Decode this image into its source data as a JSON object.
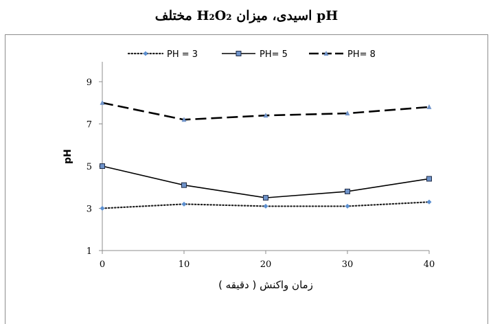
{
  "chart_data": {
    "type": "line",
    "title_prefix": "pH اسیدی، میزان ",
    "title_formula": "H₂O₂",
    "title_suffix": " مختلف",
    "xlabel": "زمان واکنش ( دقیقه )",
    "ylabel": "pH",
    "x": [
      0,
      10,
      20,
      30,
      40
    ],
    "x_ticks": [
      "0",
      "10",
      "20",
      "30",
      "40"
    ],
    "y_ticks": [
      "1",
      "3",
      "5",
      "7",
      "9"
    ],
    "xlim": [
      0,
      40
    ],
    "ylim": [
      1,
      9.3
    ],
    "grid": false,
    "legend_position": "top",
    "series": [
      {
        "name": "PH = 3",
        "values": [
          3.0,
          3.2,
          3.1,
          3.1,
          3.3
        ],
        "style": "dotted",
        "marker": "diamond",
        "color": "#1f1f1f",
        "marker_color": "#5b8fd0"
      },
      {
        "name": "PH= 5",
        "values": [
          5.0,
          4.1,
          3.5,
          3.8,
          4.4
        ],
        "style": "solid",
        "marker": "square",
        "color": "#000000",
        "marker_color": "#6f93c9"
      },
      {
        "name": "PH= 8",
        "values": [
          8.0,
          7.2,
          7.4,
          7.5,
          7.8
        ],
        "style": "dashed",
        "marker": "triangle",
        "color": "#000000",
        "marker_color": "#6f93c9"
      }
    ]
  }
}
